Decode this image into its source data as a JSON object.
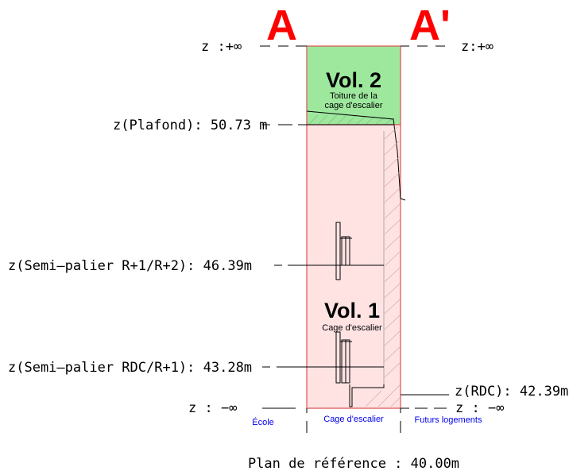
{
  "section": {
    "left_label": "A",
    "right_label": "A'"
  },
  "levels": {
    "top_left": "z :+∞",
    "top_right": "z:+∞",
    "plafond": "z(Plafond): 50.73 m",
    "semi_r1_r2": "z(Semi–palier R+1/R+2): 46.39m",
    "semi_rdc_r1": "z(Semi–palier RDC/R+1): 43.28m",
    "rdc": "z(RDC): 42.39m",
    "bottom_left": "z : −∞",
    "bottom_right": "z : −∞"
  },
  "volumes": [
    {
      "title": "Vol. 2",
      "line1": "Toiture de la",
      "line2": "cage d'escalier",
      "color": "#9ee89e"
    },
    {
      "title": "Vol. 1",
      "line1": "Cage d'escalier",
      "color": "#ffe3e3"
    }
  ],
  "zones": {
    "left": "École",
    "center": "Cage d'escalier",
    "right": "Futurs logements"
  },
  "reference": "Plan de référence : 40.00m",
  "colors": {
    "section_marker": "#ff0000",
    "volume_border": "#e05050",
    "zone_text": "#0000ee"
  }
}
